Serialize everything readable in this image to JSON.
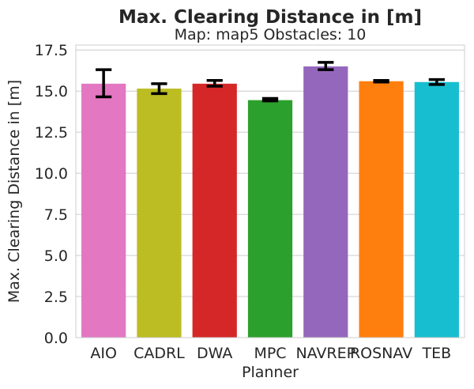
{
  "chart_data": {
    "type": "bar",
    "title": "Max. Clearing Distance in [m]",
    "subtitle": "Map: map5 Obstacles: 10",
    "xlabel": "Planner",
    "ylabel": "Max. Clearing Distance in [m]",
    "ylim": [
      0,
      17.8
    ],
    "yticks": [
      "0.0",
      "2.5",
      "5.0",
      "7.5",
      "10.0",
      "12.5",
      "15.0",
      "17.5"
    ],
    "grid": "horizontal",
    "categories": [
      "AIO",
      "CADRL",
      "DWA",
      "MPC",
      "NAVREP",
      "ROSNAV",
      "TEB"
    ],
    "values": [
      15.45,
      15.15,
      15.45,
      14.45,
      16.5,
      15.6,
      15.55
    ],
    "error_low": [
      14.65,
      14.85,
      15.3,
      14.4,
      16.3,
      15.55,
      15.4
    ],
    "error_high": [
      16.3,
      15.45,
      15.65,
      14.55,
      16.75,
      15.65,
      15.7
    ],
    "colors": [
      "#e377c2",
      "#bcbd22",
      "#d62728",
      "#2ca02c",
      "#9467bd",
      "#ff7f0e",
      "#17becf"
    ]
  }
}
